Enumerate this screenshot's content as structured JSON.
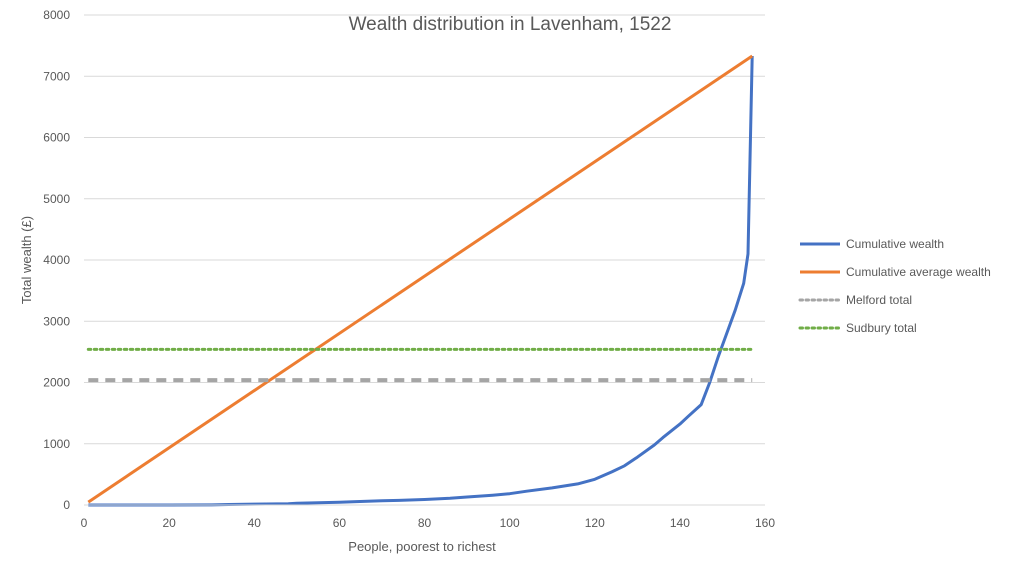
{
  "chart_data": {
    "type": "line",
    "title": "Wealth distribution in Lavenham, 1522",
    "xlabel": "People, poorest to richest",
    "ylabel": "Total wealth (£)",
    "xlim": [
      0,
      160
    ],
    "ylim": [
      0,
      8000
    ],
    "x_ticks": [
      0,
      20,
      40,
      60,
      80,
      100,
      120,
      140,
      160
    ],
    "y_ticks": [
      0,
      1000,
      2000,
      3000,
      4000,
      5000,
      6000,
      7000,
      8000
    ],
    "grid": "horizontal",
    "legend_position": "right",
    "series": [
      {
        "name": "Cumulative wealth",
        "color": "#4472C4",
        "style": "solid",
        "points": [
          [
            1,
            0
          ],
          [
            10,
            0
          ],
          [
            20,
            0
          ],
          [
            30,
            2
          ],
          [
            34,
            8
          ],
          [
            40,
            14
          ],
          [
            48,
            20
          ],
          [
            50,
            28
          ],
          [
            60,
            45
          ],
          [
            64,
            55
          ],
          [
            70,
            68
          ],
          [
            74,
            75
          ],
          [
            80,
            90
          ],
          [
            86,
            110
          ],
          [
            90,
            130
          ],
          [
            96,
            160
          ],
          [
            100,
            185
          ],
          [
            104,
            225
          ],
          [
            110,
            280
          ],
          [
            116,
            345
          ],
          [
            120,
            420
          ],
          [
            124,
            540
          ],
          [
            127,
            640
          ],
          [
            130,
            780
          ],
          [
            134,
            980
          ],
          [
            136,
            1100
          ],
          [
            140,
            1320
          ],
          [
            142,
            1450
          ],
          [
            145,
            1640
          ],
          [
            147,
            2000
          ],
          [
            149,
            2420
          ],
          [
            151,
            2800
          ],
          [
            153,
            3180
          ],
          [
            155,
            3620
          ],
          [
            156,
            4100
          ],
          [
            157,
            7330
          ]
        ]
      },
      {
        "name": "Cumulative average wealth",
        "color": "#ED7D31",
        "style": "solid",
        "points": [
          [
            1,
            47
          ],
          [
            157,
            7330
          ]
        ]
      },
      {
        "name": "Melford total",
        "color": "#A5A5A5",
        "style": "dashed",
        "legend_style": "dotted",
        "points": [
          [
            1,
            2040
          ],
          [
            157,
            2040
          ]
        ]
      },
      {
        "name": "Sudbury total",
        "color": "#70AD47",
        "style": "dotted",
        "points": [
          [
            1,
            2540
          ],
          [
            157,
            2540
          ]
        ]
      }
    ]
  }
}
